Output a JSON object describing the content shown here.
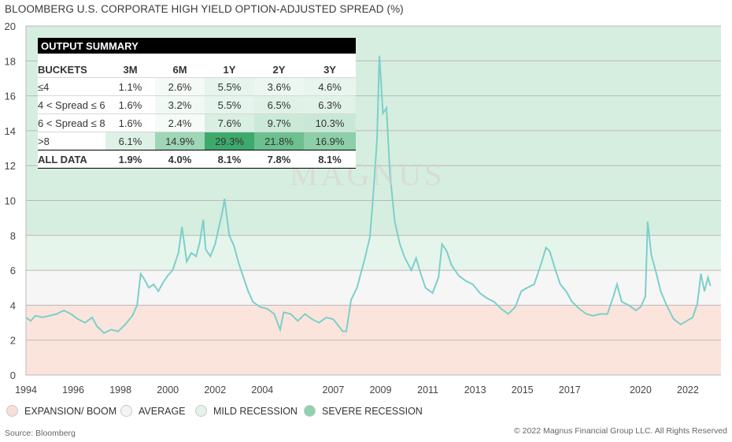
{
  "title": "BLOOMBERG U.S. CORPORATE HIGH YIELD OPTION-ADJUSTED SPREAD (%)",
  "watermark": "MAGNUS",
  "source": "Source: Bloomberg",
  "copyright": "© 2022 Magnus Financial Group LLC. All Rights Reserved",
  "legend": [
    {
      "label": "EXPANSION/ BOOM",
      "color": "#f8dfd8"
    },
    {
      "label": "AVERAGE",
      "color": "#f4f4f4"
    },
    {
      "label": "MILD RECESSION",
      "color": "#e3f3ea"
    },
    {
      "label": "SEVERE RECESSION",
      "color": "#8fd2ad"
    }
  ],
  "summary": {
    "title": "OUTPUT SUMMARY",
    "headers": [
      "BUCKETS",
      "3M",
      "6M",
      "1Y",
      "2Y",
      "3Y"
    ],
    "rows": [
      {
        "label": "≤4",
        "values": [
          "1.1%",
          "2.6%",
          "5.5%",
          "3.6%",
          "4.6%"
        ],
        "shades": [
          "#ffffff",
          "#f4faf6",
          "#e5f4ec",
          "#edf7f1",
          "#e8f5ee"
        ]
      },
      {
        "label": "4 < Spread ≤ 6",
        "values": [
          "1.6%",
          "3.2%",
          "5.5%",
          "6.5%",
          "6.3%"
        ],
        "shades": [
          "#ffffff",
          "#f1f9f4",
          "#e5f4ec",
          "#e0f2e8",
          "#e1f2e9"
        ]
      },
      {
        "label": "6 < Spread ≤ 8",
        "values": [
          "1.6%",
          "2.4%",
          "7.6%",
          "9.7%",
          "10.3%"
        ],
        "shades": [
          "#ffffff",
          "#f5fbf7",
          "#d8efe2",
          "#cbe9d7",
          "#c8e8d5"
        ]
      },
      {
        "label": ">8",
        "values": [
          "6.1%",
          "14.9%",
          "29.3%",
          "21.8%",
          "16.9%"
        ],
        "shades": [
          "#ddf1e6",
          "#9fd6b6",
          "#3daa6c",
          "#6cc08f",
          "#8ccfa8"
        ]
      }
    ],
    "all_row": {
      "label": "ALL DATA",
      "values": [
        "1.9%",
        "4.0%",
        "8.1%",
        "7.8%",
        "8.1%"
      ]
    }
  },
  "chart_data": {
    "type": "line",
    "title": "BLOOMBERG U.S. CORPORATE HIGH YIELD OPTION-ADJUSTED SPREAD (%)",
    "xlabel": "",
    "ylabel": "",
    "ylim": [
      0,
      20
    ],
    "xlim": [
      1994,
      2023.4
    ],
    "y_ticks": [
      0,
      2,
      4,
      6,
      8,
      10,
      12,
      14,
      16,
      18,
      20
    ],
    "x_ticks": [
      1994,
      1996,
      1998,
      2000,
      2002,
      2004,
      2007,
      2009,
      2011,
      2013,
      2015,
      2017,
      2020,
      2022
    ],
    "grid": true,
    "bands": [
      {
        "name": "EXPANSION/ BOOM",
        "from": 0,
        "to": 4,
        "color": "#fbe4dc"
      },
      {
        "name": "AVERAGE",
        "from": 4,
        "to": 6,
        "color": "#f6f6f6"
      },
      {
        "name": "MILD RECESSION",
        "from": 6,
        "to": 8,
        "color": "#e6f5ec"
      },
      {
        "name": "SEVERE RECESSION",
        "from": 8,
        "to": 20,
        "color": "#d6eedf"
      }
    ],
    "line_color": "#7ccfcb",
    "series": [
      {
        "values": [
          [
            1994.0,
            3.3
          ],
          [
            1994.2,
            3.1
          ],
          [
            1994.4,
            3.4
          ],
          [
            1994.7,
            3.3
          ],
          [
            1995.0,
            3.4
          ],
          [
            1995.3,
            3.5
          ],
          [
            1995.6,
            3.7
          ],
          [
            1995.9,
            3.5
          ],
          [
            1996.2,
            3.2
          ],
          [
            1996.5,
            3.0
          ],
          [
            1996.8,
            3.3
          ],
          [
            1997.0,
            2.8
          ],
          [
            1997.3,
            2.4
          ],
          [
            1997.6,
            2.6
          ],
          [
            1997.9,
            2.5
          ],
          [
            1998.2,
            2.9
          ],
          [
            1998.5,
            3.4
          ],
          [
            1998.7,
            4.0
          ],
          [
            1998.85,
            5.8
          ],
          [
            1999.0,
            5.5
          ],
          [
            1999.2,
            5.0
          ],
          [
            1999.4,
            5.2
          ],
          [
            1999.6,
            4.8
          ],
          [
            1999.8,
            5.3
          ],
          [
            2000.0,
            5.7
          ],
          [
            2000.2,
            6.0
          ],
          [
            2000.45,
            7.0
          ],
          [
            2000.6,
            8.5
          ],
          [
            2000.8,
            6.5
          ],
          [
            2001.0,
            7.0
          ],
          [
            2001.2,
            6.8
          ],
          [
            2001.35,
            7.6
          ],
          [
            2001.5,
            8.9
          ],
          [
            2001.6,
            7.2
          ],
          [
            2001.8,
            6.8
          ],
          [
            2002.0,
            7.5
          ],
          [
            2002.3,
            9.3
          ],
          [
            2002.4,
            10.1
          ],
          [
            2002.6,
            8.0
          ],
          [
            2002.8,
            7.4
          ],
          [
            2003.0,
            6.4
          ],
          [
            2003.2,
            5.6
          ],
          [
            2003.4,
            4.8
          ],
          [
            2003.6,
            4.2
          ],
          [
            2003.9,
            3.9
          ],
          [
            2004.2,
            3.8
          ],
          [
            2004.5,
            3.5
          ],
          [
            2004.75,
            2.6
          ],
          [
            2004.9,
            3.6
          ],
          [
            2005.2,
            3.5
          ],
          [
            2005.5,
            3.1
          ],
          [
            2005.8,
            3.5
          ],
          [
            2006.1,
            3.2
          ],
          [
            2006.4,
            3.0
          ],
          [
            2006.7,
            3.3
          ],
          [
            2007.0,
            3.2
          ],
          [
            2007.4,
            2.5
          ],
          [
            2007.55,
            2.5
          ],
          [
            2007.75,
            4.3
          ],
          [
            2008.0,
            5.0
          ],
          [
            2008.3,
            6.5
          ],
          [
            2008.55,
            7.9
          ],
          [
            2008.7,
            10.5
          ],
          [
            2008.85,
            13.5
          ],
          [
            2008.95,
            18.3
          ],
          [
            2009.1,
            15.0
          ],
          [
            2009.25,
            15.3
          ],
          [
            2009.4,
            11.5
          ],
          [
            2009.6,
            8.8
          ],
          [
            2009.8,
            7.6
          ],
          [
            2010.0,
            6.8
          ],
          [
            2010.3,
            6.0
          ],
          [
            2010.5,
            6.7
          ],
          [
            2010.7,
            5.8
          ],
          [
            2010.9,
            5.0
          ],
          [
            2011.2,
            4.7
          ],
          [
            2011.45,
            5.6
          ],
          [
            2011.6,
            7.5
          ],
          [
            2011.8,
            7.1
          ],
          [
            2012.0,
            6.3
          ],
          [
            2012.3,
            5.7
          ],
          [
            2012.6,
            5.4
          ],
          [
            2012.9,
            5.2
          ],
          [
            2013.2,
            4.7
          ],
          [
            2013.5,
            4.4
          ],
          [
            2013.8,
            4.2
          ],
          [
            2014.1,
            3.8
          ],
          [
            2014.4,
            3.5
          ],
          [
            2014.7,
            3.9
          ],
          [
            2014.95,
            4.8
          ],
          [
            2015.2,
            5.0
          ],
          [
            2015.5,
            5.2
          ],
          [
            2015.8,
            6.4
          ],
          [
            2016.0,
            7.3
          ],
          [
            2016.15,
            7.1
          ],
          [
            2016.4,
            6.0
          ],
          [
            2016.6,
            5.2
          ],
          [
            2016.85,
            4.8
          ],
          [
            2017.1,
            4.2
          ],
          [
            2017.4,
            3.8
          ],
          [
            2017.7,
            3.5
          ],
          [
            2018.0,
            3.4
          ],
          [
            2018.3,
            3.5
          ],
          [
            2018.6,
            3.5
          ],
          [
            2018.85,
            4.5
          ],
          [
            2019.0,
            5.2
          ],
          [
            2019.2,
            4.2
          ],
          [
            2019.5,
            4.0
          ],
          [
            2019.8,
            3.7
          ],
          [
            2020.0,
            3.9
          ],
          [
            2020.2,
            4.5
          ],
          [
            2020.3,
            8.8
          ],
          [
            2020.45,
            6.9
          ],
          [
            2020.65,
            5.9
          ],
          [
            2020.85,
            4.8
          ],
          [
            2021.1,
            4.0
          ],
          [
            2021.4,
            3.2
          ],
          [
            2021.7,
            2.9
          ],
          [
            2021.95,
            3.1
          ],
          [
            2022.2,
            3.3
          ],
          [
            2022.4,
            4.1
          ],
          [
            2022.55,
            5.8
          ],
          [
            2022.7,
            4.8
          ],
          [
            2022.85,
            5.6
          ],
          [
            2022.95,
            5.1
          ]
        ]
      }
    ]
  }
}
